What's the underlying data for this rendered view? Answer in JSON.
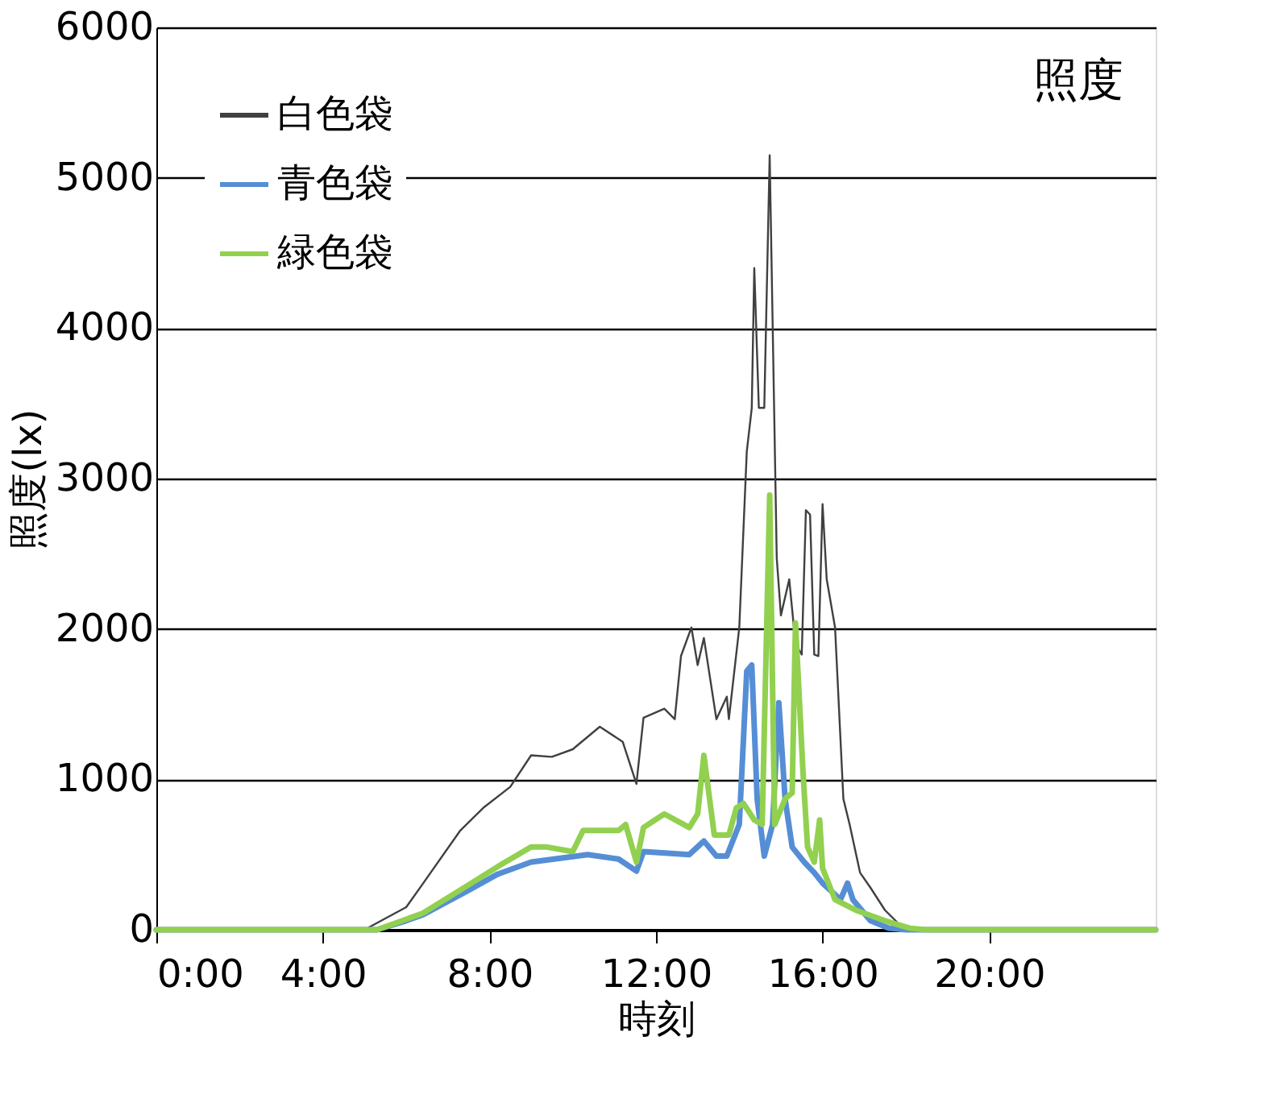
{
  "chart_data": {
    "type": "line",
    "xlabel": "時刻",
    "ylabel": "照度(lx)",
    "annotations": [
      "照度"
    ],
    "xlim": [
      0,
      24
    ],
    "xticks": [
      {
        "value": 0,
        "label": "0:00"
      },
      {
        "value": 4,
        "label": "4:00"
      },
      {
        "value": 8,
        "label": "8:00"
      },
      {
        "value": 12,
        "label": "12:00"
      },
      {
        "value": 16,
        "label": "16:00"
      },
      {
        "value": 20,
        "label": "20:00"
      }
    ],
    "ylim": [
      0,
      6000
    ],
    "yticks": [
      0,
      1000,
      2000,
      3000,
      4000,
      5000,
      6000
    ],
    "grid": "y",
    "legend": "top left",
    "marker": "none",
    "line_style": "solid",
    "series": [
      {
        "name": "白色袋",
        "color": "#404040",
        "x": [
          0,
          5.0,
          5.4,
          6.0,
          6.36,
          7.3,
          7.85,
          8.5,
          9.0,
          9.5,
          10.0,
          10.65,
          11.2,
          11.53,
          11.7,
          12.2,
          12.45,
          12.6,
          12.85,
          13.0,
          13.15,
          13.45,
          13.7,
          13.75,
          14.0,
          14.18,
          14.3,
          14.36,
          14.47,
          14.6,
          14.73,
          14.9,
          15.0,
          15.2,
          15.35,
          15.5,
          15.6,
          15.7,
          15.8,
          15.9,
          16.0,
          16.1,
          16.3,
          16.5,
          16.65,
          16.9,
          17.15,
          17.5,
          17.9,
          18.3,
          24
        ],
        "values": [
          0,
          0,
          60,
          150,
          290,
          660,
          810,
          950,
          1160,
          1150,
          1200,
          1350,
          1250,
          970,
          1410,
          1470,
          1400,
          1820,
          2010,
          1760,
          1940,
          1400,
          1550,
          1400,
          2010,
          3180,
          3470,
          4400,
          3470,
          3470,
          5150,
          2470,
          2090,
          2330,
          1900,
          1830,
          2790,
          2760,
          1830,
          1820,
          2830,
          2330,
          2010,
          870,
          700,
          380,
          280,
          130,
          20,
          0,
          0
        ]
      },
      {
        "name": "青色袋",
        "color": "#558ed5",
        "x": [
          0,
          5.3,
          6.0,
          6.4,
          7.45,
          8.2,
          9.0,
          10.36,
          11.1,
          11.53,
          11.7,
          12.8,
          13.15,
          13.45,
          13.7,
          14.0,
          14.18,
          14.3,
          14.43,
          14.6,
          14.8,
          14.95,
          15.1,
          15.27,
          15.56,
          15.8,
          16.0,
          16.43,
          16.6,
          16.73,
          17.15,
          17.6,
          18.0,
          24
        ],
        "values": [
          0,
          0,
          60,
          100,
          255,
          370,
          450,
          500,
          470,
          390,
          520,
          500,
          590,
          490,
          490,
          700,
          1720,
          1760,
          870,
          490,
          700,
          1510,
          870,
          550,
          450,
          380,
          310,
          200,
          310,
          200,
          60,
          10,
          0,
          0
        ]
      },
      {
        "name": "緑色袋",
        "color": "#92d050",
        "x": [
          0,
          5.3,
          6.0,
          6.4,
          7.45,
          8.2,
          9.0,
          9.38,
          10.0,
          10.25,
          11.1,
          11.27,
          11.53,
          11.7,
          12.2,
          12.8,
          13.0,
          13.15,
          13.4,
          13.75,
          13.93,
          14.1,
          14.36,
          14.55,
          14.73,
          14.85,
          15.1,
          15.27,
          15.35,
          15.53,
          15.64,
          15.8,
          15.93,
          16.0,
          16.3,
          16.8,
          17.5,
          18.1,
          18.5,
          24
        ],
        "values": [
          0,
          0,
          70,
          110,
          290,
          420,
          550,
          550,
          520,
          660,
          660,
          700,
          450,
          680,
          770,
          680,
          770,
          1160,
          630,
          630,
          810,
          840,
          730,
          700,
          2890,
          700,
          870,
          910,
          2040,
          1050,
          550,
          450,
          730,
          410,
          200,
          130,
          60,
          10,
          0,
          0
        ]
      }
    ]
  }
}
